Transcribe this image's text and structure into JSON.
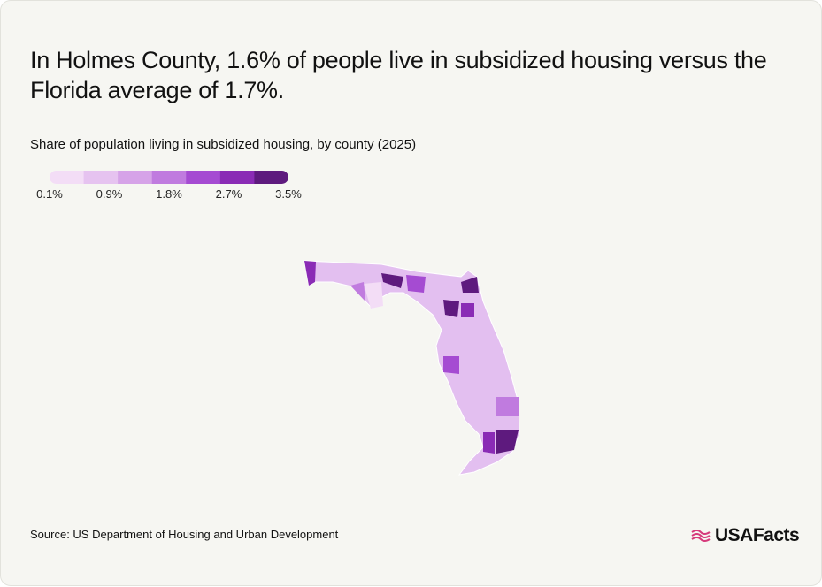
{
  "header": {
    "title": "In Holmes County, 1.6% of people live in subsidized housing versus the Florida average of 1.7%.",
    "subtitle": "Share of population living in subsidized housing, by county (2025)"
  },
  "legend": {
    "colors": [
      "#f3ddf6",
      "#e6c3f0",
      "#d6a3e8",
      "#c07bdf",
      "#a54bd2",
      "#8a2bb5",
      "#5e1a7e"
    ],
    "labels": [
      "0.1%",
      "0.9%",
      "1.8%",
      "2.7%",
      "3.5%"
    ]
  },
  "footer": {
    "source": "Source: US Department of Housing and Urban Development",
    "logo": "USAFacts"
  }
}
